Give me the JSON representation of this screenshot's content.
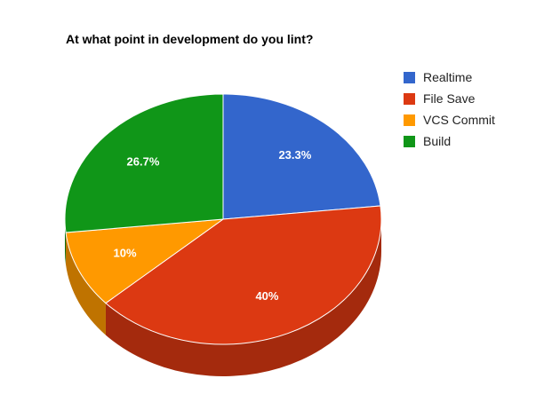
{
  "chart_data": {
    "type": "pie",
    "title": "At what point in development do you lint?",
    "is_3d": true,
    "legend_position": "right",
    "start_angle_deg": 0,
    "direction": "clockwise",
    "slices": [
      {
        "name": "Realtime",
        "value": 23.3,
        "label": "23.3%",
        "color": "#3366cc",
        "side_color": "#2a539f"
      },
      {
        "name": "File Save",
        "value": 40,
        "label": "40%",
        "color": "#dc3912",
        "side_color": "#a42a0d"
      },
      {
        "name": "VCS Commit",
        "value": 10,
        "label": "10%",
        "color": "#ff9900",
        "side_color": "#bf7300"
      },
      {
        "name": "Build",
        "value": 26.7,
        "label": "26.7%",
        "color": "#109618",
        "side_color": "#0c7012"
      }
    ]
  }
}
